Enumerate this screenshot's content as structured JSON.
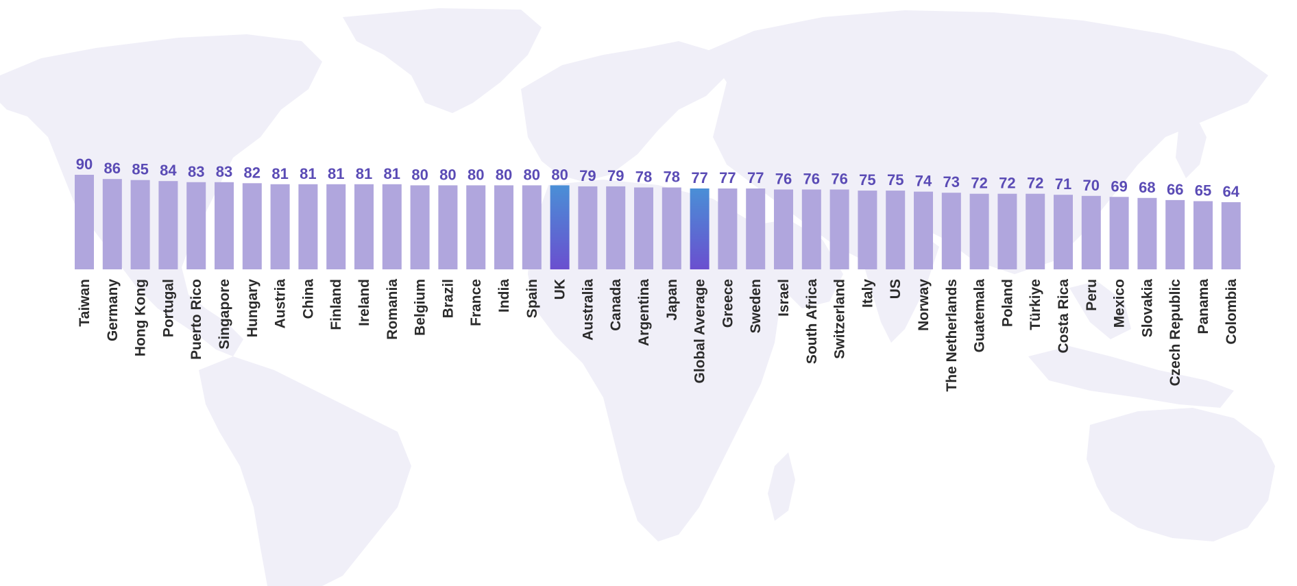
{
  "colors": {
    "bar": "#b0a6dd",
    "highlight_top": "#4a8fd6",
    "highlight_bottom": "#6a4fcf",
    "value_label": "#5a4bb5",
    "category_label": "#2b2b2b",
    "map": "#f0eff8"
  },
  "background_icon": "world-map",
  "chart_data": {
    "type": "bar",
    "orientation": "vertical",
    "title": "",
    "xlabel": "",
    "ylabel": "",
    "grid": false,
    "legend": "none",
    "ylim": [
      0,
      90
    ],
    "highlighted": [
      "UK",
      "Global Average"
    ],
    "categories": [
      "Taiwan",
      "Germany",
      "Hong Kong",
      "Portugal",
      "Puerto Rico",
      "Singapore",
      "Hungary",
      "Austria",
      "China",
      "Finland",
      "Ireland",
      "Romania",
      "Belgium",
      "Brazil",
      "France",
      "India",
      "Spain",
      "UK",
      "Australia",
      "Canada",
      "Argentina",
      "Japan",
      "Global Average",
      "Greece",
      "Sweden",
      "Israel",
      "South Africa",
      "Switzerland",
      "Italy",
      "US",
      "Norway",
      "The Netherlands",
      "Guatemala",
      "Poland",
      "Türkiye",
      "Costa Rica",
      "Peru",
      "Mexico",
      "Slovakia",
      "Czech Republic",
      "Panama",
      "Colombia"
    ],
    "values": [
      90,
      86,
      85,
      84,
      83,
      83,
      82,
      81,
      81,
      81,
      81,
      81,
      80,
      80,
      80,
      80,
      80,
      80,
      79,
      79,
      78,
      78,
      77,
      77,
      77,
      76,
      76,
      76,
      75,
      75,
      74,
      73,
      72,
      72,
      72,
      71,
      70,
      69,
      68,
      66,
      65,
      64
    ]
  }
}
